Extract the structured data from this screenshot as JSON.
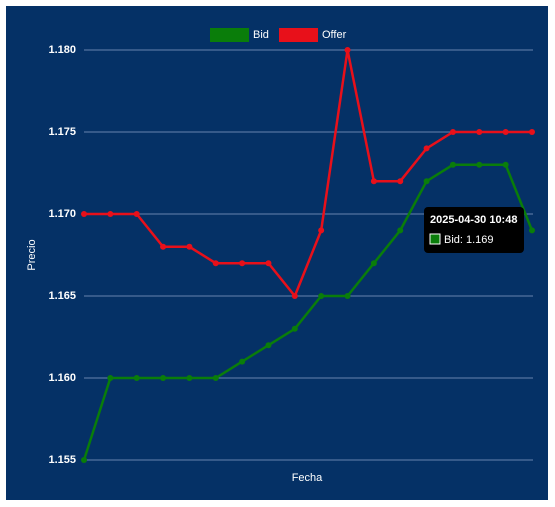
{
  "chart_data": {
    "type": "line",
    "x_label": "Fecha",
    "y_label": "Precio",
    "categories": [
      null,
      null,
      null,
      null,
      null,
      null,
      null,
      null,
      null,
      null,
      null,
      null,
      null,
      null,
      null,
      null,
      null,
      null
    ],
    "series": [
      {
        "name": "Bid",
        "color": "#0a7d0a",
        "values": [
          1.155,
          1.16,
          1.16,
          1.16,
          1.16,
          1.16,
          1.161,
          1.162,
          1.163,
          1.165,
          1.165,
          1.167,
          1.169,
          1.172,
          1.173,
          1.173,
          1.173,
          1.169
        ]
      },
      {
        "name": "Offer",
        "color": "#e8101a",
        "values": [
          1.17,
          1.17,
          1.17,
          1.168,
          1.168,
          1.167,
          1.167,
          1.167,
          1.165,
          1.169,
          1.18,
          1.172,
          1.172,
          1.174,
          1.175,
          1.175,
          1.175,
          1.175
        ]
      }
    ],
    "ylim": [
      1.155,
      1.18
    ],
    "yticks": [
      1.155,
      {
        "value": 1.16,
        "label": "1.160"
      },
      1.165,
      {
        "value": 1.17,
        "label": "1.170"
      },
      1.175,
      {
        "value": 1.18,
        "label": "1.180"
      }
    ],
    "grid": true,
    "legend": "top",
    "tooltip": {
      "title": "2025-04-30 10:48",
      "label": "Bid: 1.169"
    }
  }
}
